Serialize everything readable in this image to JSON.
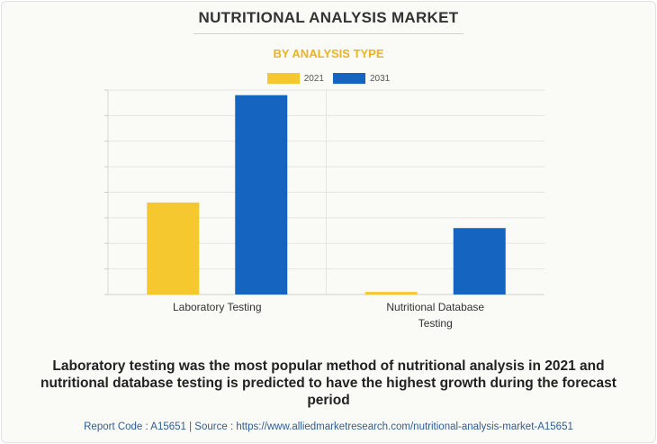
{
  "header": {
    "title": "NUTRITIONAL ANALYSIS MARKET",
    "subtitle": "BY ANALYSIS TYPE"
  },
  "chart_data": {
    "type": "bar",
    "categories": [
      [
        "Laboratory Testing"
      ],
      [
        "Nutritional Database",
        "Testing"
      ]
    ],
    "series": [
      {
        "name": "2021",
        "color": "#f5c830",
        "values": [
          36,
          1
        ]
      },
      {
        "name": "2031",
        "color": "#1565c0",
        "values": [
          78,
          26
        ]
      }
    ],
    "ylim": [
      0,
      80
    ],
    "grid": true,
    "legend_position": "top-center",
    "title": "BY ANALYSIS TYPE"
  },
  "caption": "Laboratory testing was the most popular method of nutritional analysis in 2021 and nutritional database testing is predicted to have the highest growth during the forecast period",
  "footer": {
    "text": "Report Code : A15651  |  Source : https://www.alliedmarketresearch.com/nutritional-analysis-market-A15651"
  }
}
